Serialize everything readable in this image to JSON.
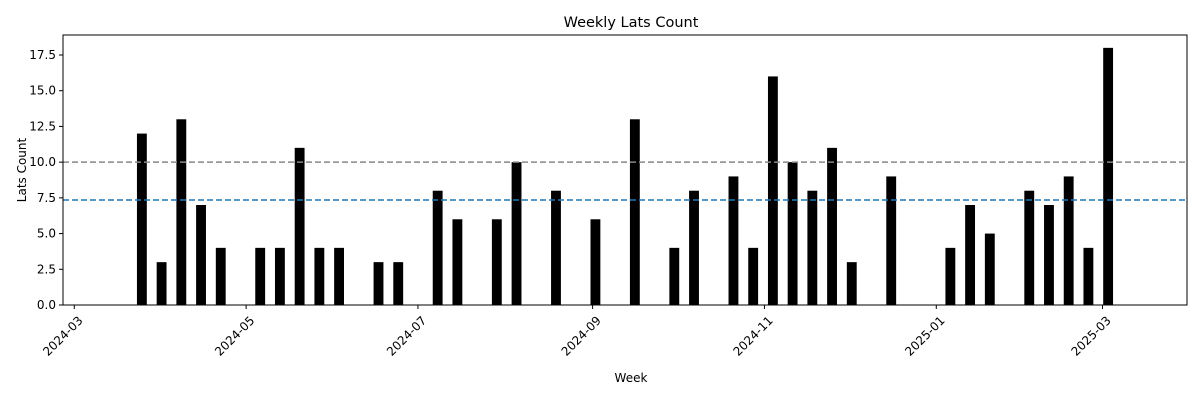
{
  "chart_data": {
    "type": "bar",
    "title": "Weekly Lats Count",
    "xlabel": "Week",
    "ylabel": "Lats Count",
    "xlim": [
      "2024-02-26",
      "2025-03-31"
    ],
    "ylim": [
      0,
      18.9
    ],
    "yticks": [
      0.0,
      2.5,
      5.0,
      7.5,
      10.0,
      12.5,
      15.0,
      17.5
    ],
    "ytick_labels": [
      "0.0",
      "2.5",
      "5.0",
      "7.5",
      "10.0",
      "12.5",
      "15.0",
      "17.5"
    ],
    "xticks": [
      "2024-03-01",
      "2024-05-01",
      "2024-07-01",
      "2024-09-01",
      "2024-11-01",
      "2025-01-01",
      "2025-03-01"
    ],
    "xtick_labels": [
      "2024-03",
      "2024-05",
      "2024-07",
      "2024-09",
      "2024-11",
      "2025-01",
      "2025-03"
    ],
    "bar_color": "#000000",
    "reference_lines": [
      {
        "y": 10.0,
        "color": "#888888",
        "style": "dashed"
      },
      {
        "y": 7.35,
        "color": "#1f77b4",
        "style": "dashed"
      }
    ],
    "x": [
      "2024-03-25",
      "2024-04-01",
      "2024-04-08",
      "2024-04-15",
      "2024-04-22",
      "2024-05-06",
      "2024-05-13",
      "2024-05-20",
      "2024-05-27",
      "2024-06-03",
      "2024-06-17",
      "2024-06-24",
      "2024-07-08",
      "2024-07-15",
      "2024-07-29",
      "2024-08-05",
      "2024-08-19",
      "2024-09-02",
      "2024-09-16",
      "2024-09-30",
      "2024-10-07",
      "2024-10-21",
      "2024-10-28",
      "2024-11-04",
      "2024-11-11",
      "2024-11-18",
      "2024-11-25",
      "2024-12-02",
      "2024-12-16",
      "2025-01-06",
      "2025-01-13",
      "2025-01-20",
      "2025-02-03",
      "2025-02-10",
      "2025-02-17",
      "2025-02-24",
      "2025-03-03"
    ],
    "values": [
      12,
      3,
      13,
      7,
      4,
      4,
      4,
      11,
      4,
      4,
      3,
      3,
      8,
      6,
      6,
      10,
      8,
      6,
      13,
      4,
      8,
      9,
      4,
      16,
      10,
      8,
      11,
      3,
      9,
      4,
      7,
      5,
      8,
      7,
      9,
      4,
      18
    ]
  }
}
